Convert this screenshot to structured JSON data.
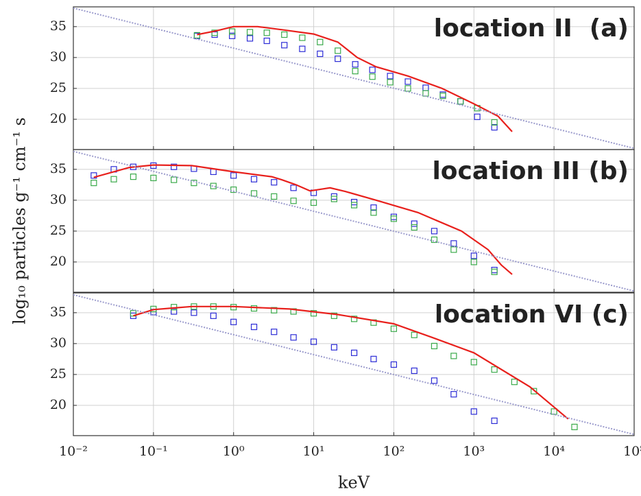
{
  "chart_data": [
    {
      "type": "scatter",
      "title": "location II  (a)",
      "xscale": "log",
      "grid": true,
      "xlim": [
        0.01,
        100000
      ],
      "xticks": [
        0.01,
        0.1,
        1,
        10,
        100,
        1000,
        10000,
        100000
      ],
      "ylim": [
        15.1,
        38.2
      ],
      "yticks": [
        20,
        25,
        30,
        35
      ],
      "series": [
        {
          "type": "scatter",
          "color": "#2b2bd6",
          "x": [
            0.35,
            0.58,
            0.96,
            1.6,
            2.6,
            4.3,
            7.2,
            12,
            20,
            33,
            54,
            90,
            150,
            250,
            410,
            680,
            1100,
            1800
          ],
          "values": [
            33.5,
            33.7,
            33.5,
            33.1,
            32.7,
            32.0,
            31.4,
            30.6,
            29.8,
            28.9,
            28.0,
            27.0,
            26.1,
            25.1,
            24.0,
            22.9,
            20.4,
            18.7
          ]
        },
        {
          "type": "scatter",
          "color": "#3aaa4a",
          "x": [
            0.35,
            0.58,
            0.96,
            1.6,
            2.6,
            4.3,
            7.2,
            12,
            20,
            33,
            54,
            90,
            150,
            250,
            410,
            680,
            1100,
            1800
          ],
          "values": [
            33.6,
            34.0,
            34.2,
            34.1,
            34.0,
            33.7,
            33.2,
            32.5,
            31.1,
            27.8,
            26.9,
            26.0,
            25.0,
            24.2,
            23.8,
            22.9,
            21.8,
            19.5
          ]
        },
        {
          "type": "line",
          "color": "#e8201c",
          "x": [
            0.35,
            0.6,
            1,
            2,
            4,
            10,
            20,
            35,
            60,
            150,
            400,
            1000,
            2000,
            3000
          ],
          "values": [
            33.7,
            34.3,
            35,
            35,
            34.5,
            33.8,
            32.5,
            30,
            28.5,
            27,
            25,
            22.5,
            20.5,
            18
          ]
        },
        {
          "type": "line",
          "style": "dotted",
          "color": "#9a9acc",
          "x": [
            0.01,
            100000
          ],
          "values": [
            38,
            15.3
          ]
        }
      ]
    },
    {
      "type": "scatter",
      "title": "location III (b)",
      "ylabel": "log₁₀ particles g⁻¹ cm⁻¹ s",
      "xscale": "log",
      "grid": true,
      "xlim": [
        0.01,
        100000
      ],
      "xticks": [
        0.01,
        0.1,
        1,
        10,
        100,
        1000,
        10000,
        100000
      ],
      "ylim": [
        15.1,
        38.2
      ],
      "yticks": [
        20,
        25,
        30,
        35
      ],
      "series": [
        {
          "type": "scatter",
          "color": "#2b2bd6",
          "x": [
            0.018,
            0.032,
            0.056,
            0.1,
            0.18,
            0.32,
            0.56,
            1,
            1.8,
            3.2,
            5.6,
            10,
            18,
            32,
            56,
            100,
            180,
            320,
            560,
            1000,
            1800
          ],
          "values": [
            34.0,
            35.0,
            35.4,
            35.6,
            35.4,
            35.1,
            34.6,
            34.0,
            33.4,
            32.9,
            32.0,
            31.2,
            30.6,
            29.7,
            28.8,
            27.3,
            26.2,
            25.0,
            23.0,
            21.0,
            18.7
          ]
        },
        {
          "type": "scatter",
          "color": "#3aaa4a",
          "x": [
            0.018,
            0.032,
            0.056,
            0.1,
            0.18,
            0.32,
            0.56,
            1,
            1.8,
            3.2,
            5.6,
            10,
            18,
            32,
            56,
            100,
            180,
            320,
            560,
            1000,
            1800
          ],
          "values": [
            32.8,
            33.4,
            33.8,
            33.6,
            33.3,
            32.8,
            32.3,
            31.7,
            31.1,
            30.6,
            29.9,
            29.6,
            30.2,
            29.2,
            28.0,
            27.0,
            25.6,
            23.6,
            22.0,
            20.0,
            18.4
          ]
        },
        {
          "type": "line",
          "color": "#e8201c",
          "x": [
            0.018,
            0.05,
            0.1,
            0.3,
            1,
            3,
            4,
            6,
            9,
            16,
            25,
            60,
            200,
            700,
            1500,
            2200,
            3000
          ],
          "values": [
            33.7,
            35.3,
            35.7,
            35.6,
            34.6,
            33.8,
            33.3,
            32.5,
            31.5,
            32,
            31.4,
            30,
            28,
            25,
            22,
            19.5,
            18
          ]
        },
        {
          "type": "line",
          "style": "dotted",
          "color": "#9a9acc",
          "x": [
            0.01,
            100000
          ],
          "values": [
            37.9,
            15.3
          ]
        }
      ]
    },
    {
      "type": "scatter",
      "title": "location VI (c)",
      "xlabel": "keV",
      "xscale": "log",
      "grid": true,
      "xlim": [
        0.01,
        100000
      ],
      "xticks": [
        {
          "value": 0.01,
          "label": "10⁻²"
        },
        {
          "value": 0.1,
          "label": "10⁻¹"
        },
        {
          "value": 1,
          "label": "10⁰"
        },
        {
          "value": 10,
          "label": "10¹"
        },
        {
          "value": 100,
          "label": "10²"
        },
        {
          "value": 1000,
          "label": "10³"
        },
        {
          "value": 10000,
          "label": "10⁴"
        },
        {
          "value": 100000,
          "label": "10⁵"
        }
      ],
      "ylim": [
        15.1,
        38.2
      ],
      "yticks": [
        20,
        25,
        30,
        35
      ],
      "series": [
        {
          "type": "scatter",
          "color": "#2b2bd6",
          "x": [
            0.056,
            0.1,
            0.18,
            0.32,
            0.56,
            1,
            1.8,
            3.2,
            5.6,
            10,
            18,
            32,
            56,
            100,
            180,
            320,
            560,
            1000,
            1800
          ],
          "values": [
            34.5,
            35.1,
            35.2,
            35.0,
            34.5,
            33.5,
            32.7,
            31.9,
            31.0,
            30.3,
            29.4,
            28.5,
            27.5,
            26.6,
            25.6,
            24.0,
            21.8,
            19.0,
            17.5
          ]
        },
        {
          "type": "scatter",
          "color": "#3aaa4a",
          "x": [
            0.056,
            0.1,
            0.18,
            0.32,
            0.56,
            1,
            1.8,
            3.2,
            5.6,
            10,
            18,
            32,
            56,
            100,
            180,
            320,
            560,
            1000,
            1800,
            3200,
            5600,
            10000,
            18000
          ],
          "values": [
            34.9,
            35.6,
            35.9,
            36.0,
            36.0,
            35.9,
            35.7,
            35.4,
            35.2,
            34.9,
            34.5,
            34.0,
            33.4,
            32.4,
            31.4,
            29.6,
            28.0,
            27.0,
            25.8,
            23.8,
            22.3,
            19.0,
            16.5
          ]
        },
        {
          "type": "line",
          "color": "#e8201c",
          "x": [
            0.056,
            0.1,
            0.3,
            1,
            5,
            20,
            100,
            300,
            1000,
            5000,
            15000
          ],
          "values": [
            34.5,
            35.5,
            36,
            36,
            35.6,
            34.7,
            33.2,
            31,
            28.5,
            23,
            17.8
          ]
        },
        {
          "type": "line",
          "style": "dotted",
          "color": "#9a9acc",
          "x": [
            0.01,
            100000
          ],
          "values": [
            37.9,
            15.3
          ]
        }
      ]
    }
  ]
}
